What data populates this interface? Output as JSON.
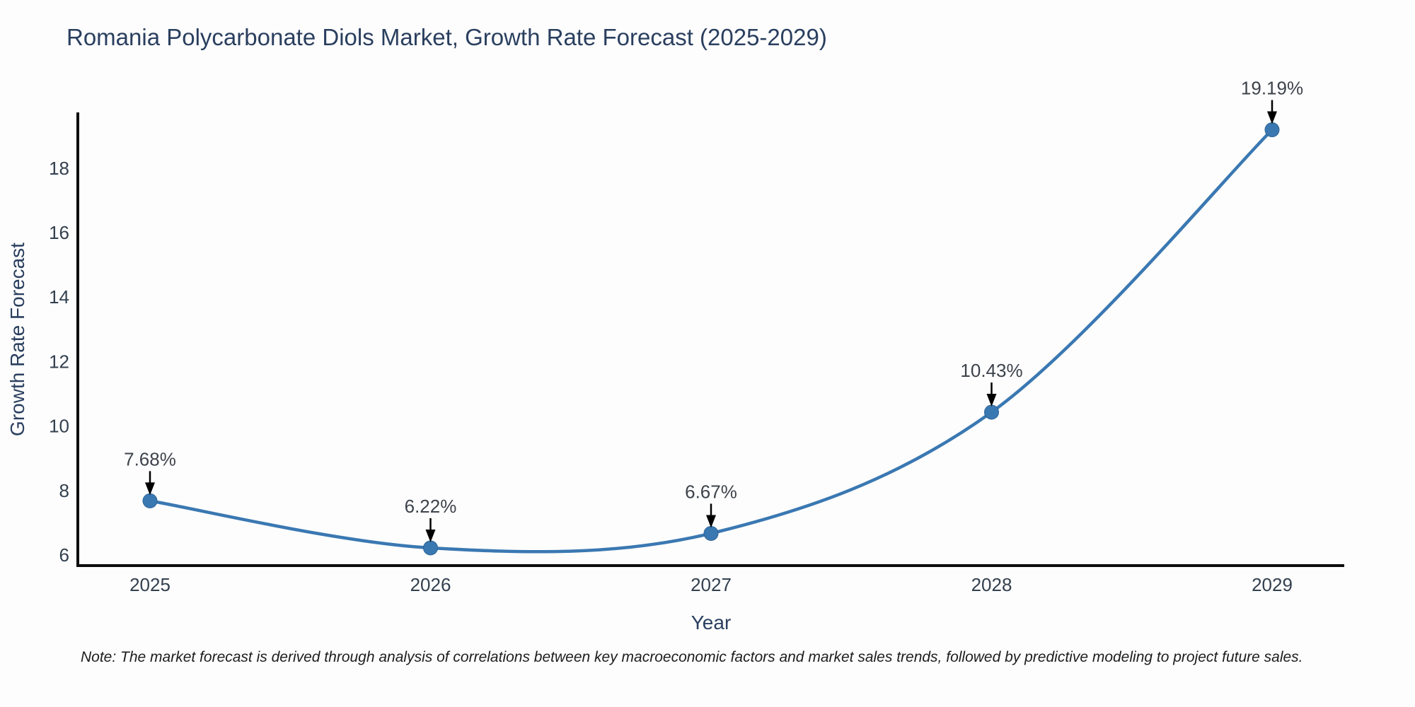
{
  "chart_data": {
    "type": "line",
    "title": "Romania Polycarbonate Diols Market, Growth Rate Forecast (2025-2029)",
    "xlabel": "Year",
    "ylabel": "Growth Rate Forecast",
    "categories": [
      "2025",
      "2026",
      "2027",
      "2028",
      "2029"
    ],
    "values": [
      7.68,
      6.22,
      6.67,
      10.43,
      19.19
    ],
    "point_labels": [
      "7.68%",
      "6.22%",
      "6.67%",
      "10.43%",
      "19.19%"
    ],
    "yticks": [
      6,
      8,
      10,
      12,
      14,
      16,
      18
    ],
    "ylim": [
      5.6,
      19.8
    ],
    "grid": false,
    "legend": "none",
    "line_shape": "spline",
    "colors": {
      "line": "#3a78b2",
      "marker": "#3a78b2",
      "marker_edge": "#2f6496",
      "axis": "#0d0d0d",
      "title": "#2a3f5f",
      "tick": "#33404f",
      "annotation": "#3d434b",
      "arrow": "#000000"
    }
  },
  "note": "Note: The market forecast is derived through analysis of correlations between key macroeconomic factors and market sales trends, followed by predictive modeling to project future sales."
}
